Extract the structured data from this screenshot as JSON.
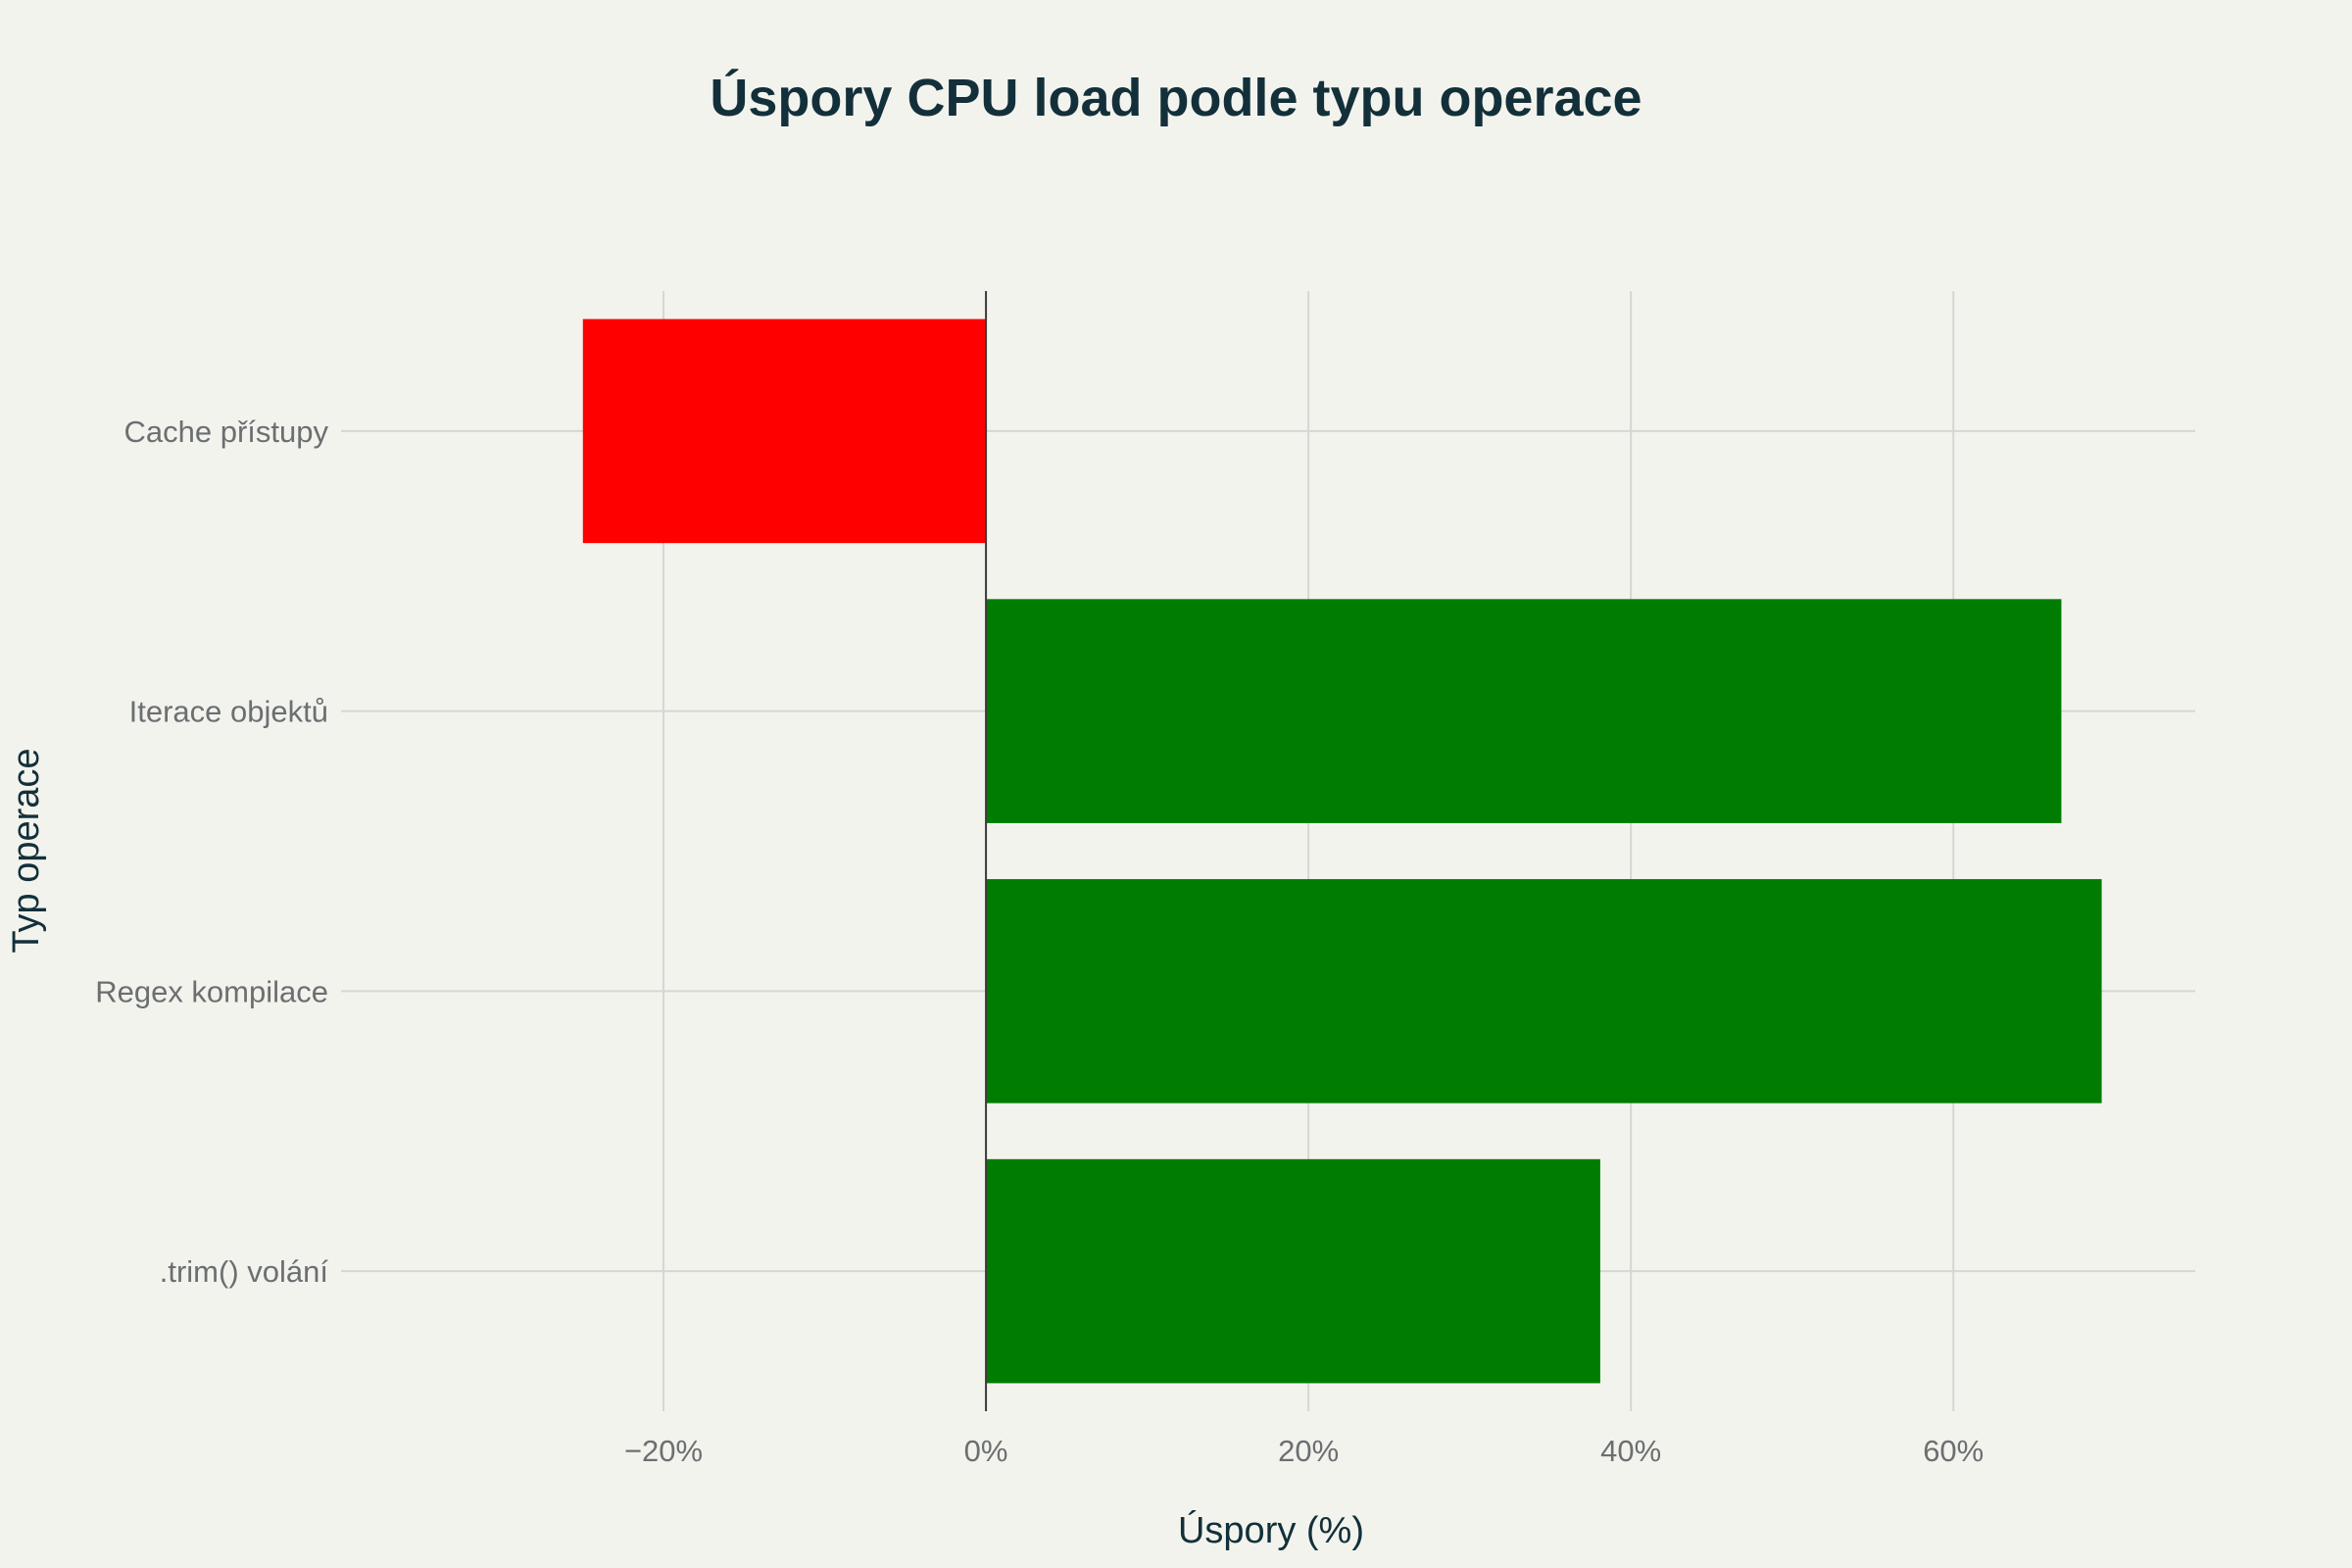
{
  "chart_data": {
    "type": "bar",
    "orientation": "horizontal",
    "title": "Úspory CPU load podle typu operace",
    "xlabel": "Úspory (%)",
    "ylabel": "Typ operace",
    "categories": [
      "Cache přístupy",
      "Iterace objektů",
      "Regex kompilace",
      ".trim() volání"
    ],
    "values": [
      -25,
      66.7,
      69.2,
      38.1
    ],
    "xlim": [
      -40,
      75
    ],
    "xticks": [
      -20,
      0,
      20,
      40,
      60
    ],
    "xtick_labels": [
      "−20%",
      "0%",
      "20%",
      "40%",
      "60%"
    ],
    "grid": true,
    "legend": "none",
    "colors": {
      "positive": "#007d00",
      "negative": "#ff0000",
      "background": "#f3f3ee",
      "title": "#13303a"
    }
  }
}
